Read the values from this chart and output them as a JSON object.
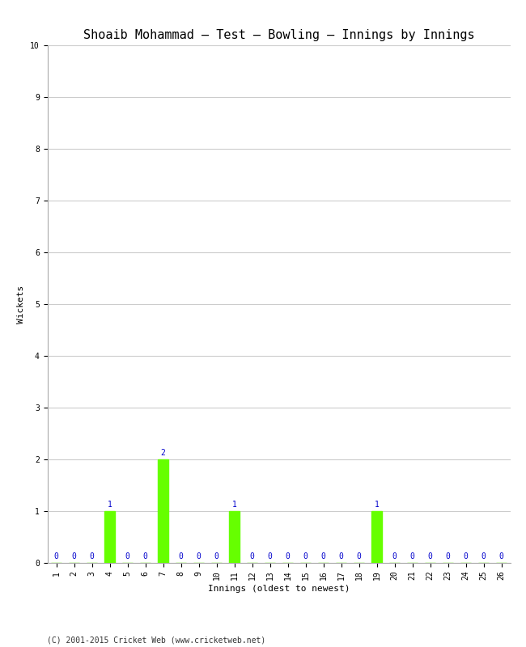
{
  "title": "Shoaib Mohammad – Test – Bowling – Innings by Innings",
  "xlabel": "Innings (oldest to newest)",
  "ylabel": "Wickets",
  "ylim": [
    0,
    10
  ],
  "yticks": [
    0,
    1,
    2,
    3,
    4,
    5,
    6,
    7,
    8,
    9,
    10
  ],
  "innings": [
    1,
    2,
    3,
    4,
    5,
    6,
    7,
    8,
    9,
    10,
    11,
    12,
    13,
    14,
    15,
    16,
    17,
    18,
    19,
    20,
    21,
    22,
    23,
    24,
    25,
    26
  ],
  "wickets": [
    0,
    0,
    0,
    1,
    0,
    0,
    2,
    0,
    0,
    0,
    1,
    0,
    0,
    0,
    0,
    0,
    0,
    0,
    1,
    0,
    0,
    0,
    0,
    0,
    0,
    0
  ],
  "bar_color": "#66ff00",
  "label_color": "#0000cc",
  "background_color": "#ffffff",
  "grid_color": "#cccccc",
  "footer": "(C) 2001-2015 Cricket Web (www.cricketweb.net)",
  "title_fontsize": 11,
  "axis_label_fontsize": 8,
  "tick_fontsize": 7,
  "bar_label_fontsize": 7,
  "footer_fontsize": 7
}
